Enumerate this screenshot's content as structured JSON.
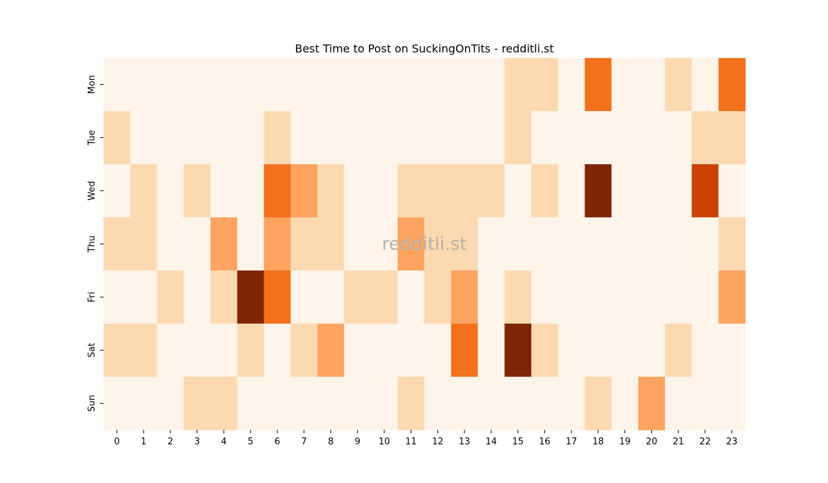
{
  "chart_data": {
    "type": "heatmap",
    "title": "Best Time to Post on SuckingOnTits - redditli.st",
    "watermark": "redditli.st",
    "x": [
      "0",
      "1",
      "2",
      "3",
      "4",
      "5",
      "6",
      "7",
      "8",
      "9",
      "10",
      "11",
      "12",
      "13",
      "14",
      "15",
      "16",
      "17",
      "18",
      "19",
      "20",
      "21",
      "22",
      "23"
    ],
    "y": [
      "Mon",
      "Tue",
      "Wed",
      "Thu",
      "Fri",
      "Sat",
      "Sun"
    ],
    "values": [
      [
        0,
        0,
        0,
        0,
        0,
        0,
        0,
        0,
        0,
        0,
        0,
        0,
        0,
        0,
        0,
        1,
        1,
        0,
        3,
        0,
        0,
        1,
        0,
        3
      ],
      [
        1,
        0,
        0,
        0,
        0,
        0,
        1,
        0,
        0,
        0,
        0,
        0,
        0,
        0,
        0,
        1,
        0,
        0,
        0,
        0,
        0,
        0,
        1,
        1
      ],
      [
        0,
        1,
        0,
        1,
        0,
        0,
        3,
        2,
        1,
        0,
        0,
        1,
        1,
        1,
        1,
        0,
        1,
        0,
        5,
        0,
        0,
        0,
        4,
        0
      ],
      [
        1,
        1,
        0,
        0,
        2,
        0,
        2,
        1,
        1,
        0,
        0,
        2,
        1,
        1,
        0,
        0,
        0,
        0,
        0,
        0,
        0,
        0,
        0,
        1
      ],
      [
        0,
        0,
        1,
        0,
        1,
        5,
        3,
        0,
        0,
        1,
        1,
        0,
        1,
        2,
        0,
        1,
        0,
        0,
        0,
        0,
        0,
        0,
        0,
        2
      ],
      [
        1,
        1,
        0,
        0,
        0,
        1,
        0,
        1,
        2,
        0,
        0,
        0,
        0,
        3,
        0,
        5,
        1,
        0,
        0,
        0,
        0,
        1,
        0,
        0
      ],
      [
        0,
        0,
        0,
        1,
        1,
        0,
        0,
        0,
        0,
        0,
        0,
        1,
        0,
        0,
        0,
        0,
        0,
        0,
        1,
        0,
        2,
        0,
        0,
        0
      ]
    ],
    "colorscale": [
      "#fff4e9",
      "#fdd9b1",
      "#fda461",
      "#f3711c",
      "#ca4302",
      "#7f2704"
    ],
    "grid": false,
    "legend": "none"
  }
}
